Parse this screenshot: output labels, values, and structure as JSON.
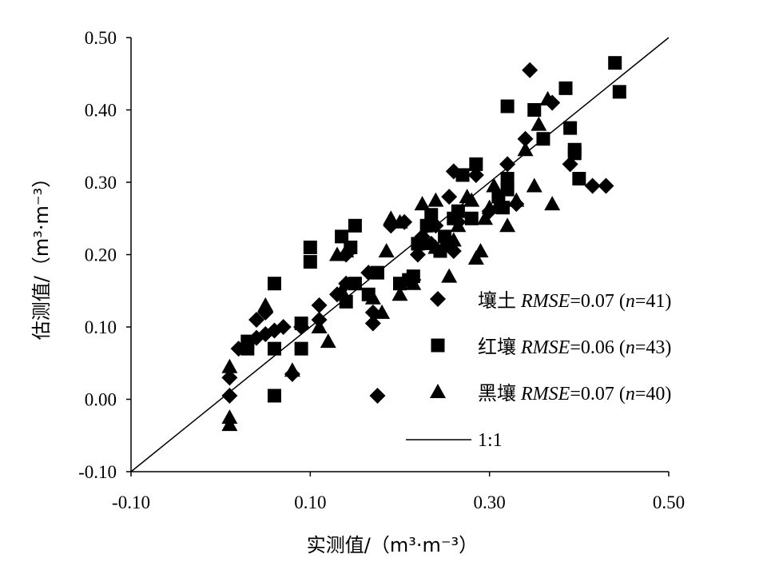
{
  "chart_data": {
    "type": "scatter",
    "title": "",
    "xlabel": "实测值/（m³·m⁻³）",
    "ylabel": "估测值/（m³·m⁻³）",
    "xlim": [
      -0.1,
      0.5
    ],
    "ylim": [
      -0.1,
      0.5
    ],
    "x_ticks": [
      -0.1,
      0.1,
      0.3,
      0.5
    ],
    "x_tick_labels": [
      "-0.10",
      "0.10",
      "0.30",
      "0.50"
    ],
    "y_ticks": [
      -0.1,
      0.0,
      0.1,
      0.2,
      0.3,
      0.4,
      0.5
    ],
    "y_tick_labels": [
      "-0.10",
      "0.00",
      "0.10",
      "0.20",
      "0.30",
      "0.40",
      "0.50"
    ],
    "grid": false,
    "legend_position": "bottom-right",
    "identity_line": {
      "label": "1:1",
      "from": [
        -0.1,
        -0.1
      ],
      "to": [
        0.5,
        0.5
      ]
    },
    "series": [
      {
        "name": "壤土",
        "legend_prefix": "壤土",
        "stat": "RMSE",
        "stat_text": "=0.07 (",
        "n_text": "n",
        "count_text": "=41)",
        "marker": "diamond",
        "color": "#000000",
        "points": [
          [
            0.01,
            0.005
          ],
          [
            0.01,
            0.03
          ],
          [
            0.02,
            0.07
          ],
          [
            0.04,
            0.085
          ],
          [
            0.04,
            0.11
          ],
          [
            0.05,
            0.12
          ],
          [
            0.05,
            0.09
          ],
          [
            0.06,
            0.095
          ],
          [
            0.07,
            0.1
          ],
          [
            0.08,
            0.035
          ],
          [
            0.09,
            0.1
          ],
          [
            0.11,
            0.11
          ],
          [
            0.11,
            0.13
          ],
          [
            0.13,
            0.145
          ],
          [
            0.14,
            0.16
          ],
          [
            0.14,
            0.2
          ],
          [
            0.17,
            0.105
          ],
          [
            0.17,
            0.12
          ],
          [
            0.165,
            0.175
          ],
          [
            0.175,
            0.005
          ],
          [
            0.19,
            0.24
          ],
          [
            0.205,
            0.245
          ],
          [
            0.215,
            0.165
          ],
          [
            0.22,
            0.2
          ],
          [
            0.225,
            0.225
          ],
          [
            0.235,
            0.215
          ],
          [
            0.24,
            0.24
          ],
          [
            0.255,
            0.28
          ],
          [
            0.26,
            0.205
          ],
          [
            0.26,
            0.315
          ],
          [
            0.265,
            0.245
          ],
          [
            0.285,
            0.31
          ],
          [
            0.3,
            0.26
          ],
          [
            0.32,
            0.325
          ],
          [
            0.33,
            0.27
          ],
          [
            0.34,
            0.36
          ],
          [
            0.345,
            0.455
          ],
          [
            0.37,
            0.41
          ],
          [
            0.39,
            0.325
          ],
          [
            0.415,
            0.295
          ],
          [
            0.43,
            0.295
          ]
        ]
      },
      {
        "name": "红壤",
        "legend_prefix": "红壤",
        "stat": "RMSE",
        "stat_text": "=0.06 (",
        "n_text": "n",
        "count_text": "=43)",
        "marker": "square",
        "color": "#000000",
        "points": [
          [
            0.03,
            0.07
          ],
          [
            0.03,
            0.08
          ],
          [
            0.06,
            0.005
          ],
          [
            0.06,
            0.07
          ],
          [
            0.06,
            0.16
          ],
          [
            0.09,
            0.105
          ],
          [
            0.09,
            0.07
          ],
          [
            0.1,
            0.21
          ],
          [
            0.1,
            0.19
          ],
          [
            0.135,
            0.225
          ],
          [
            0.14,
            0.135
          ],
          [
            0.145,
            0.21
          ],
          [
            0.15,
            0.24
          ],
          [
            0.15,
            0.16
          ],
          [
            0.165,
            0.145
          ],
          [
            0.175,
            0.175
          ],
          [
            0.2,
            0.16
          ],
          [
            0.21,
            0.165
          ],
          [
            0.22,
            0.215
          ],
          [
            0.23,
            0.24
          ],
          [
            0.235,
            0.255
          ],
          [
            0.245,
            0.205
          ],
          [
            0.25,
            0.225
          ],
          [
            0.26,
            0.25
          ],
          [
            0.265,
            0.26
          ],
          [
            0.27,
            0.31
          ],
          [
            0.28,
            0.25
          ],
          [
            0.285,
            0.325
          ],
          [
            0.31,
            0.28
          ],
          [
            0.315,
            0.265
          ],
          [
            0.32,
            0.29
          ],
          [
            0.32,
            0.305
          ],
          [
            0.32,
            0.405
          ],
          [
            0.35,
            0.4
          ],
          [
            0.36,
            0.36
          ],
          [
            0.385,
            0.43
          ],
          [
            0.39,
            0.375
          ],
          [
            0.395,
            0.345
          ],
          [
            0.395,
            0.34
          ],
          [
            0.4,
            0.305
          ],
          [
            0.44,
            0.465
          ],
          [
            0.445,
            0.425
          ],
          [
            0.215,
            0.17
          ]
        ]
      },
      {
        "name": "黑壤",
        "legend_prefix": "黑壤",
        "stat": "RMSE",
        "stat_text": "=0.07 (",
        "n_text": "n",
        "count_text": "=40)",
        "marker": "triangle",
        "color": "#000000",
        "points": [
          [
            0.01,
            -0.035
          ],
          [
            0.01,
            -0.025
          ],
          [
            0.01,
            0.045
          ],
          [
            0.05,
            0.13
          ],
          [
            0.08,
            0.04
          ],
          [
            0.11,
            0.1
          ],
          [
            0.12,
            0.08
          ],
          [
            0.13,
            0.2
          ],
          [
            0.14,
            0.205
          ],
          [
            0.17,
            0.14
          ],
          [
            0.18,
            0.12
          ],
          [
            0.185,
            0.205
          ],
          [
            0.19,
            0.25
          ],
          [
            0.2,
            0.245
          ],
          [
            0.2,
            0.145
          ],
          [
            0.215,
            0.16
          ],
          [
            0.225,
            0.27
          ],
          [
            0.23,
            0.215
          ],
          [
            0.24,
            0.21
          ],
          [
            0.25,
            0.215
          ],
          [
            0.255,
            0.17
          ],
          [
            0.26,
            0.22
          ],
          [
            0.265,
            0.24
          ],
          [
            0.275,
            0.28
          ],
          [
            0.28,
            0.275
          ],
          [
            0.285,
            0.195
          ],
          [
            0.29,
            0.205
          ],
          [
            0.295,
            0.25
          ],
          [
            0.305,
            0.295
          ],
          [
            0.31,
            0.27
          ],
          [
            0.32,
            0.24
          ],
          [
            0.33,
            0.275
          ],
          [
            0.34,
            0.345
          ],
          [
            0.35,
            0.295
          ],
          [
            0.355,
            0.38
          ],
          [
            0.365,
            0.415
          ],
          [
            0.37,
            0.27
          ],
          [
            0.3,
            0.265
          ],
          [
            0.24,
            0.275
          ],
          [
            0.135,
            0.15
          ]
        ]
      }
    ]
  }
}
